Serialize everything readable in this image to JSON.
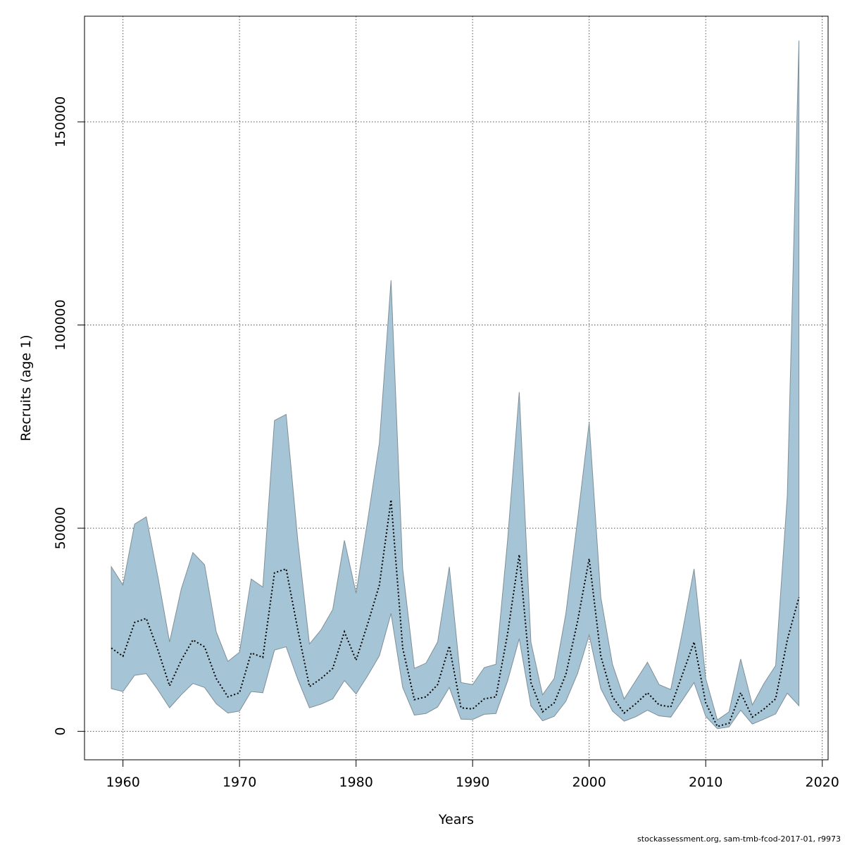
{
  "chart_data": {
    "type": "area",
    "xlabel": "Years",
    "ylabel": "Recruits (age 1)",
    "xlim": [
      1956.7,
      2020.5
    ],
    "ylim": [
      -7000,
      176000
    ],
    "xticks": [
      1960,
      1970,
      1980,
      1990,
      2000,
      2010,
      2020
    ],
    "yticks": [
      0,
      50000,
      100000,
      150000
    ],
    "grid": true,
    "band_color": "#a5c4d5",
    "band_edge_color": "#7f8f99",
    "line_color": "#000000",
    "x": [
      1959,
      1960,
      1961,
      1962,
      1963,
      1964,
      1965,
      1966,
      1967,
      1968,
      1969,
      1970,
      1971,
      1972,
      1973,
      1974,
      1975,
      1976,
      1977,
      1978,
      1979,
      1980,
      1981,
      1982,
      1983,
      1984,
      1985,
      1986,
      1987,
      1988,
      1989,
      1990,
      1991,
      1992,
      1993,
      1994,
      1995,
      1996,
      1997,
      1998,
      1999,
      2000,
      2001,
      2002,
      2003,
      2004,
      2005,
      2006,
      2007,
      2008,
      2009,
      2010,
      2011,
      2012,
      2013,
      2014,
      2015,
      2016,
      2017,
      2018
    ],
    "series": [
      {
        "name": "",
        "style": "dotted-line",
        "values": [
          20500,
          18500,
          26800,
          27800,
          20000,
          11200,
          17500,
          22500,
          20800,
          13000,
          8500,
          9500,
          19300,
          18200,
          39000,
          40000,
          25000,
          11000,
          13000,
          15500,
          24500,
          17500,
          26500,
          36000,
          57000,
          20500,
          7800,
          8500,
          11500,
          21000,
          5800,
          5500,
          8000,
          8500,
          24000,
          43500,
          12000,
          4800,
          7000,
          14000,
          27000,
          42500,
          18500,
          8500,
          4500,
          6800,
          9500,
          6500,
          6000,
          14000,
          22000,
          7000,
          1200,
          2000,
          9500,
          3500,
          5500,
          8000,
          22500,
          33000
        ]
      },
      {
        "name": "",
        "style": "band-upper",
        "values": [
          40500,
          36000,
          51000,
          52800,
          38000,
          22000,
          35000,
          44000,
          41000,
          24500,
          17200,
          19500,
          37500,
          35500,
          76500,
          78000,
          47000,
          21500,
          25000,
          30000,
          47000,
          34000,
          52000,
          71000,
          111000,
          40000,
          15500,
          16800,
          22000,
          40500,
          12000,
          11500,
          15700,
          16500,
          47000,
          83500,
          22000,
          9000,
          13000,
          29000,
          52000,
          76000,
          33000,
          16500,
          8000,
          12500,
          17000,
          11500,
          10300,
          24500,
          40000,
          13000,
          2800,
          4800,
          17800,
          6500,
          11800,
          16200,
          58000,
          170000
        ]
      },
      {
        "name": "",
        "style": "band-lower",
        "values": [
          10500,
          9800,
          13800,
          14200,
          10200,
          5800,
          9000,
          11800,
          10800,
          6800,
          4500,
          5000,
          9800,
          9500,
          20000,
          20800,
          12800,
          5800,
          6700,
          8000,
          12500,
          9200,
          13700,
          18600,
          29000,
          10800,
          4000,
          4400,
          6000,
          10800,
          3000,
          2900,
          4200,
          4400,
          12400,
          22800,
          6300,
          2600,
          3700,
          7400,
          14200,
          23700,
          10500,
          5000,
          2500,
          3600,
          5200,
          3800,
          3500,
          7700,
          12000,
          3700,
          650,
          1100,
          5200,
          1800,
          3000,
          4300,
          9400,
          6300
        ]
      }
    ],
    "credit": "stockassessment.org, sam-tmb-fcod-2017-01, r9973"
  }
}
